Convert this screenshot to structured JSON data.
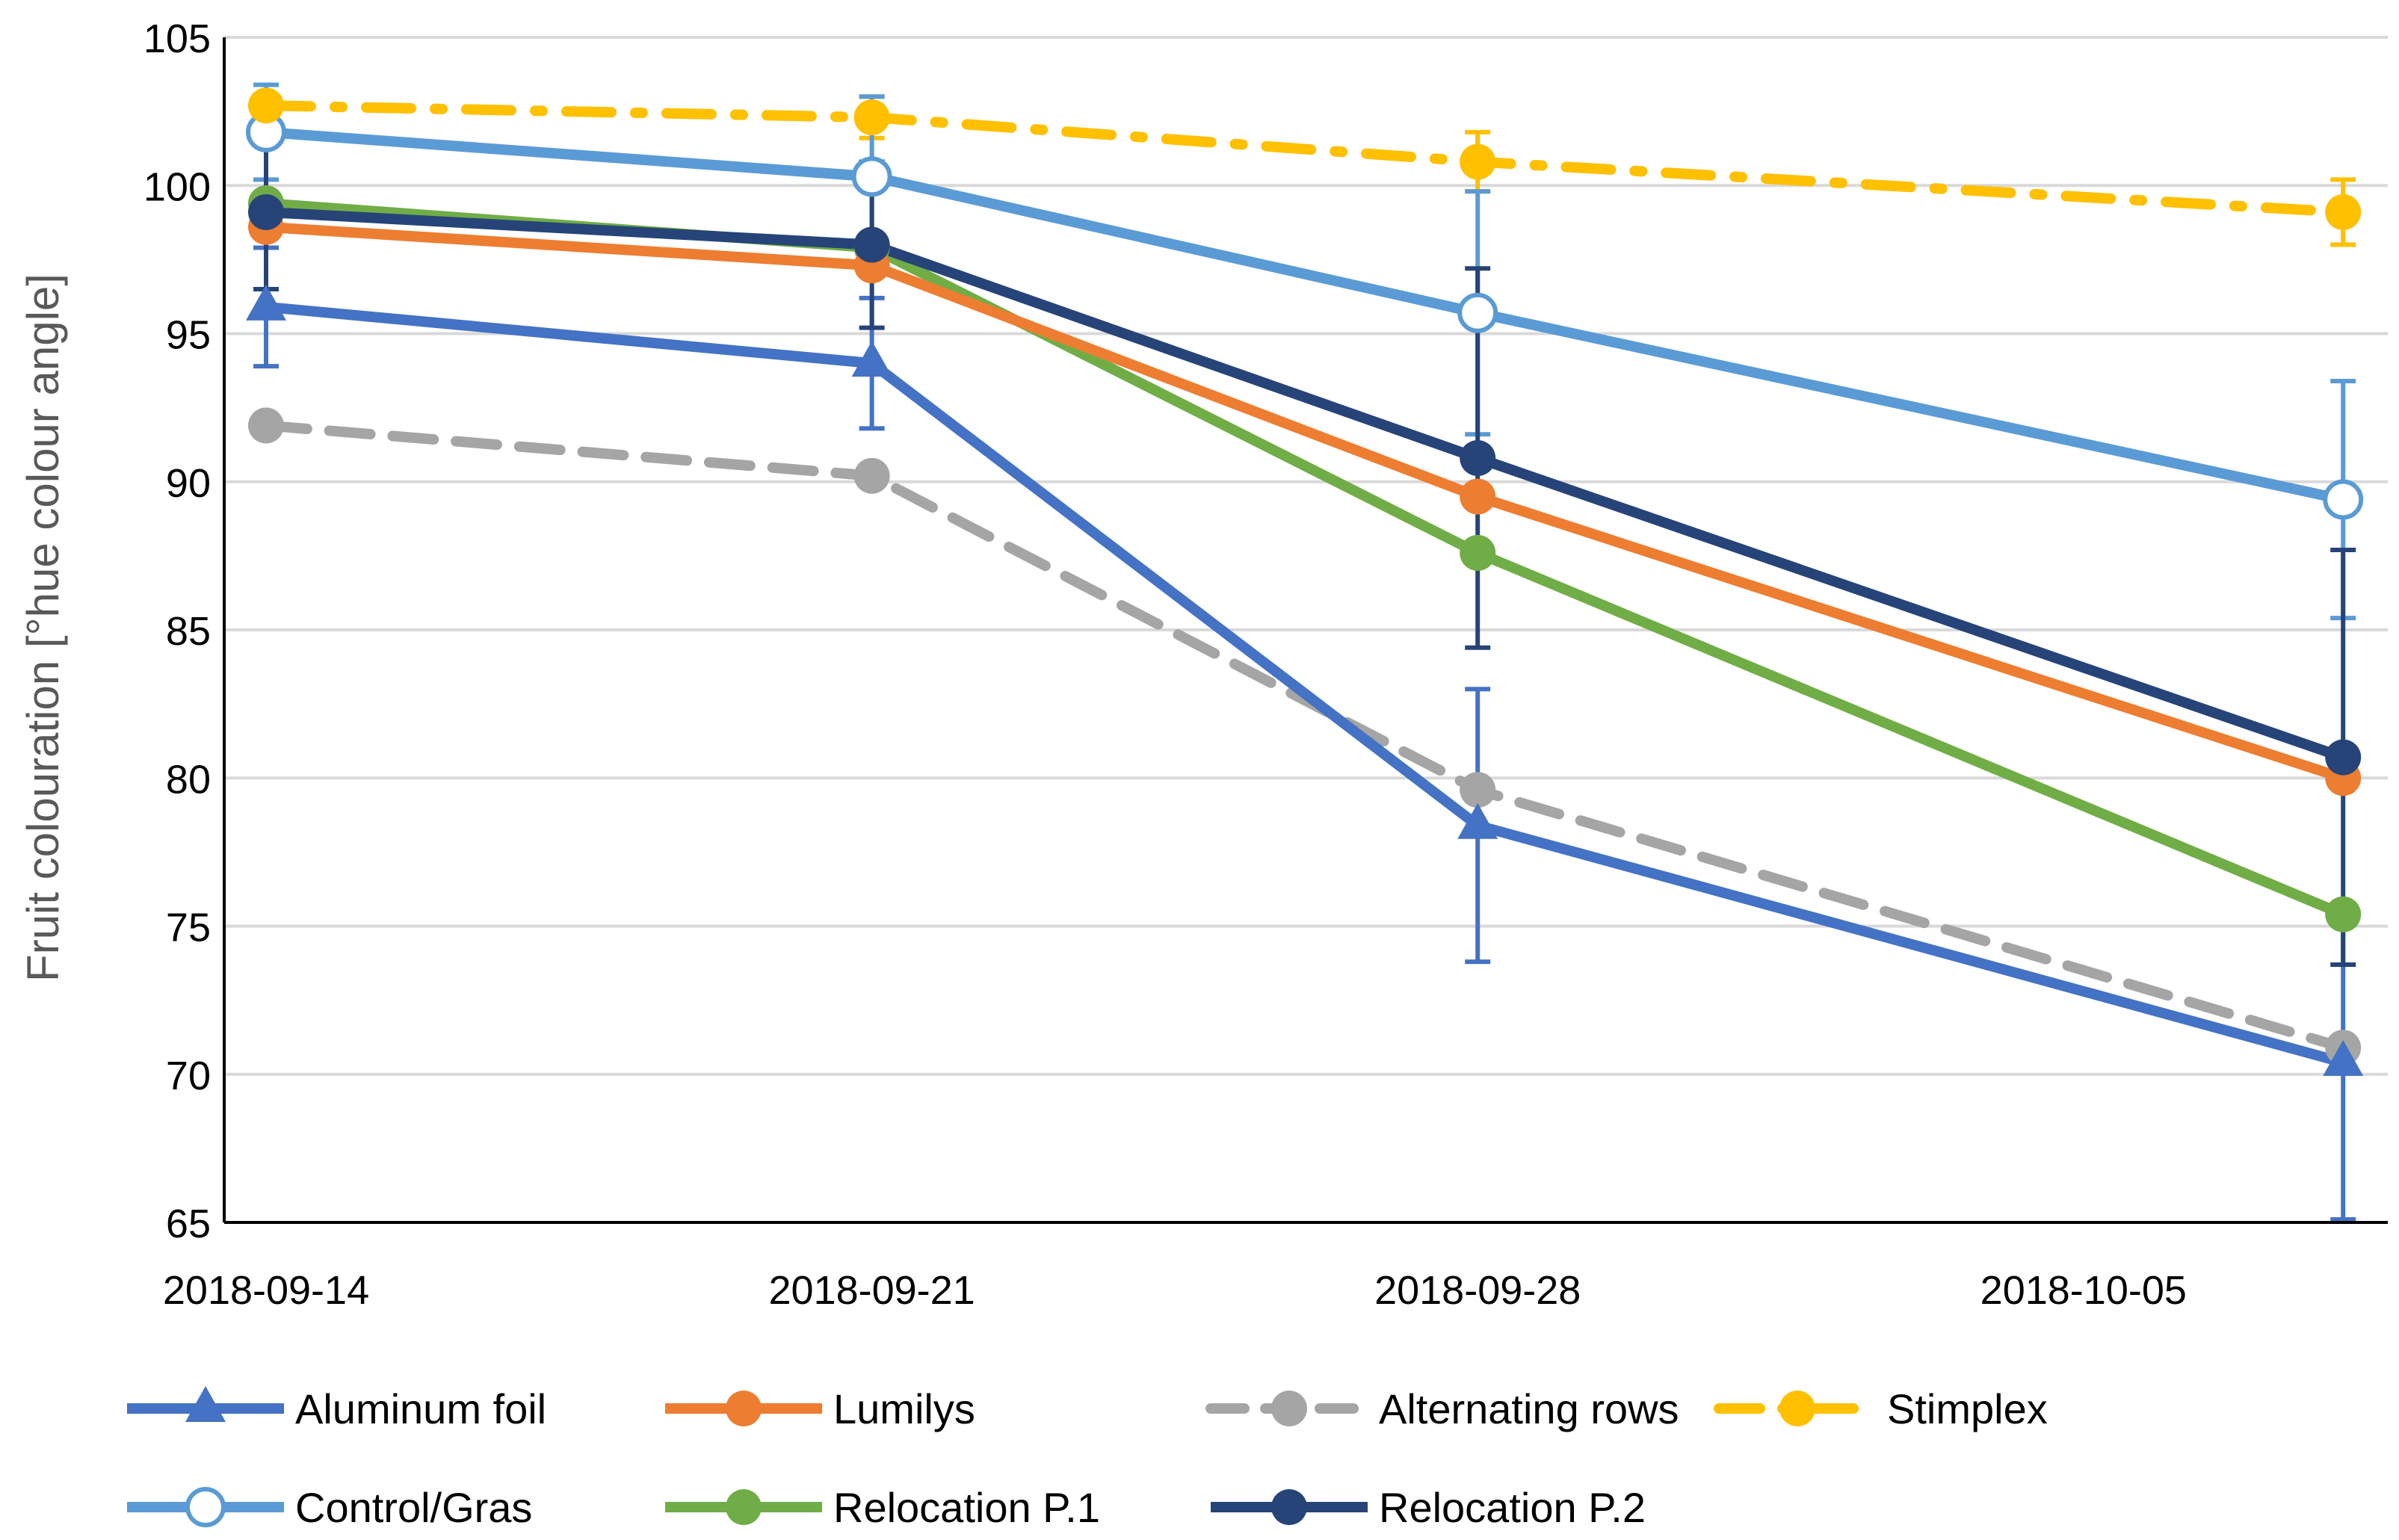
{
  "chart_data": {
    "type": "line",
    "title": "",
    "xlabel": "",
    "ylabel": "Fruit colouration [°hue colour angle]",
    "ylim": [
      65,
      105
    ],
    "yticks": [
      65,
      70,
      75,
      80,
      85,
      90,
      95,
      100,
      105
    ],
    "x_tick_labels": [
      "2018-09-14",
      "2018-09-21",
      "2018-09-28",
      "2018-10-05"
    ],
    "x_tick_days": [
      0,
      7,
      14,
      21
    ],
    "x_point_days": [
      0,
      7,
      14,
      24
    ],
    "grid": true,
    "legend_position": "bottom",
    "series": [
      {
        "name": "Aluminum foil",
        "color": "#4472C4",
        "dash": "solid",
        "marker": "triangle",
        "values": [
          95.9,
          94.0,
          78.4,
          70.4
        ],
        "error": [
          2.0,
          2.2,
          4.6,
          5.3
        ]
      },
      {
        "name": "Lumilys",
        "color": "#ED7D31",
        "dash": "solid",
        "marker": "circle",
        "values": [
          98.6,
          97.3,
          89.5,
          80.0
        ],
        "error": null
      },
      {
        "name": "Alternating rows",
        "color": "#A5A5A5",
        "dash": "dash",
        "marker": "circle",
        "values": [
          91.9,
          90.2,
          79.6,
          70.9
        ],
        "error": null
      },
      {
        "name": "Stimplex",
        "color": "#FFC000",
        "dash": "dashdot",
        "marker": "circle",
        "values": [
          102.7,
          102.3,
          100.8,
          99.1
        ],
        "error": [
          0.7,
          0.7,
          1.0,
          1.1
        ]
      },
      {
        "name": "Control/Gras",
        "color": "#5B9BD5",
        "dash": "solid",
        "marker": "open-circle",
        "values": [
          101.8,
          100.3,
          95.7,
          89.4
        ],
        "error": [
          1.6,
          2.7,
          4.1,
          4.0
        ]
      },
      {
        "name": "Relocation P.1",
        "color": "#70AD47",
        "dash": "solid",
        "marker": "circle",
        "values": [
          99.4,
          97.9,
          87.6,
          75.4
        ],
        "error": null
      },
      {
        "name": "Relocation P.2",
        "color": "#264478",
        "dash": "solid",
        "marker": "circle",
        "values": [
          99.1,
          98.0,
          90.8,
          80.7
        ],
        "error": [
          2.6,
          2.8,
          6.4,
          7.0
        ]
      }
    ]
  }
}
